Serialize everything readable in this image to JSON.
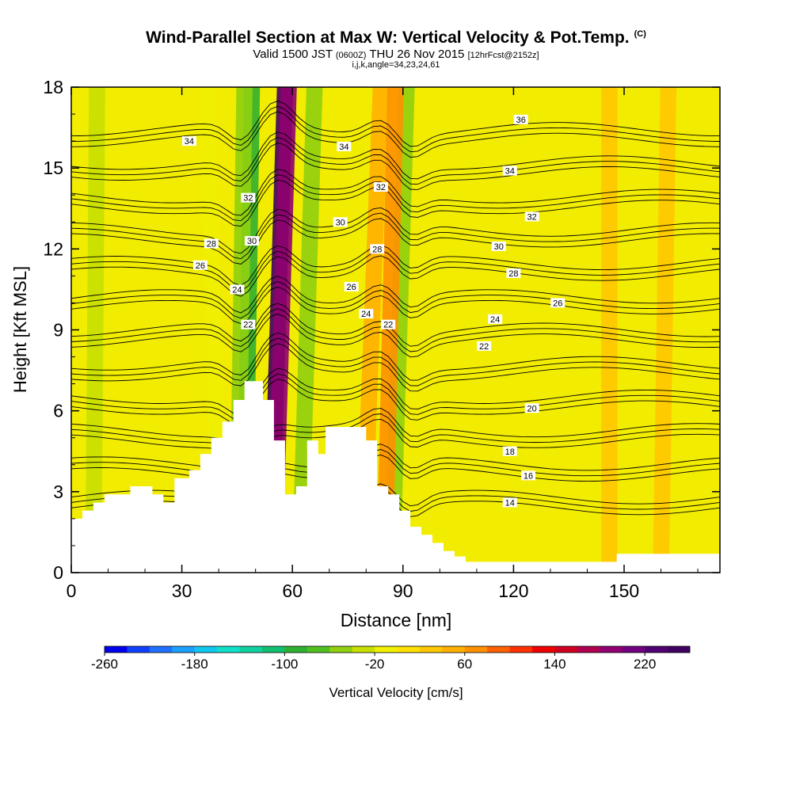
{
  "header": {
    "title": "Wind-Parallel Section at Max W: Vertical Velocity & Pot.Temp.",
    "copyright": "(C)",
    "valid_prefix": "Valid 1500 JST",
    "valid_utc": "(0600Z)",
    "valid_day": "THU 26 Nov 2015",
    "forecast": "[12hrFcst@2152z]",
    "indices": "i,j,k,angle=34,23,24,61"
  },
  "chart_data": {
    "type": "heatmap",
    "title": "Wind-Parallel Section at Max W: Vertical Velocity & Pot.Temp.",
    "xlabel": "Distance [nm]",
    "ylabel": "Height [Kft MSL]",
    "xlim": [
      0,
      176
    ],
    "ylim": [
      0,
      18
    ],
    "x_ticks": [
      "0",
      "30",
      "60",
      "90",
      "120",
      "150"
    ],
    "y_ticks": [
      "0",
      "3",
      "6",
      "9",
      "12",
      "15",
      "18"
    ],
    "colorbar": {
      "label": "Vertical Velocity [cm/s]",
      "min": -260,
      "max": 260,
      "step": 20,
      "tick_labels": [
        "-260",
        "-180",
        "-100",
        "-20",
        "60",
        "140",
        "220"
      ],
      "colors": [
        "#0000ee",
        "#1040ff",
        "#2070ff",
        "#1aa0ff",
        "#10c8ee",
        "#10e0c8",
        "#10d0a0",
        "#10c070",
        "#30b030",
        "#50c020",
        "#90d010",
        "#c8e000",
        "#f0f000",
        "#ffe000",
        "#ffc800",
        "#ffb000",
        "#ff9000",
        "#ff6000",
        "#ff3000",
        "#f00000",
        "#d00020",
        "#b00050",
        "#900070",
        "#700080",
        "#500070",
        "#400060"
      ]
    },
    "velocity_plumes": [
      {
        "x_top": 58,
        "x_bottom": 54,
        "value": 260
      },
      {
        "x_top": 59,
        "x_bottom": 55,
        "value": 180
      },
      {
        "x_top": 49,
        "x_bottom": 47,
        "value": -100
      },
      {
        "x_top": 47,
        "x_bottom": 45,
        "value": -60
      },
      {
        "x_top": 66,
        "x_bottom": 62,
        "value": -60
      },
      {
        "x_top": 84,
        "x_bottom": 79,
        "value": 40
      },
      {
        "x_top": 91,
        "x_bottom": 87,
        "value": -60
      },
      {
        "x_top": 88,
        "x_bottom": 85,
        "value": 60
      },
      {
        "x_top": 7,
        "x_bottom": 6,
        "value": -40
      },
      {
        "x_top": 37,
        "x_bottom": 40,
        "value": -20
      },
      {
        "x_top": 146,
        "x_bottom": 146,
        "value": 20
      },
      {
        "x_top": 162,
        "x_bottom": 160,
        "value": 20
      }
    ],
    "terrain": [
      [
        0,
        2
      ],
      [
        3,
        2
      ],
      [
        3,
        2.3
      ],
      [
        6,
        2.3
      ],
      [
        6,
        2.6
      ],
      [
        9,
        2.6
      ],
      [
        9,
        2.9
      ],
      [
        16,
        2.9
      ],
      [
        16,
        3.2
      ],
      [
        22,
        3.2
      ],
      [
        22,
        2.9
      ],
      [
        25,
        2.9
      ],
      [
        25,
        2.6
      ],
      [
        28,
        2.6
      ],
      [
        28,
        3.5
      ],
      [
        32,
        3.5
      ],
      [
        32,
        3.8
      ],
      [
        35,
        3.8
      ],
      [
        35,
        4.4
      ],
      [
        38,
        4.4
      ],
      [
        38,
        5
      ],
      [
        41,
        5
      ],
      [
        41,
        5.6
      ],
      [
        44,
        5.6
      ],
      [
        44,
        6.4
      ],
      [
        47,
        6.4
      ],
      [
        47,
        7.1
      ],
      [
        52,
        7.1
      ],
      [
        52,
        6.4
      ],
      [
        55,
        6.4
      ],
      [
        55,
        4.9
      ],
      [
        58,
        4.9
      ],
      [
        58,
        2.9
      ],
      [
        61,
        2.9
      ],
      [
        61,
        3.2
      ],
      [
        64,
        3.2
      ],
      [
        64,
        4.9
      ],
      [
        67,
        4.9
      ],
      [
        67,
        4.4
      ],
      [
        69,
        4.4
      ],
      [
        69,
        5.4
      ],
      [
        80,
        5.4
      ],
      [
        80,
        4.9
      ],
      [
        83,
        4.9
      ],
      [
        83,
        3.2
      ],
      [
        86,
        3.2
      ],
      [
        86,
        2.9
      ],
      [
        89,
        2.9
      ],
      [
        89,
        2.3
      ],
      [
        92,
        2.3
      ],
      [
        92,
        1.7
      ],
      [
        95,
        1.7
      ],
      [
        95,
        1.4
      ],
      [
        98,
        1.4
      ],
      [
        98,
        1.1
      ],
      [
        101,
        1.1
      ],
      [
        101,
        0.8
      ],
      [
        104,
        0.8
      ],
      [
        104,
        0.6
      ],
      [
        107,
        0.6
      ],
      [
        107,
        0.4
      ],
      [
        148,
        0.4
      ],
      [
        148,
        0.7
      ],
      [
        176,
        0.7
      ],
      [
        176,
        0
      ],
      [
        0,
        0
      ]
    ],
    "isentropes": {
      "levels": [
        14,
        16,
        18,
        20,
        22,
        24,
        26,
        28,
        30,
        32,
        34,
        36
      ],
      "contour_labels": [
        {
          "text": "34",
          "x": 32,
          "y": 16.0
        },
        {
          "text": "34",
          "x": 74,
          "y": 15.8
        },
        {
          "text": "36",
          "x": 122,
          "y": 16.8
        },
        {
          "text": "34",
          "x": 119,
          "y": 14.9
        },
        {
          "text": "32",
          "x": 48,
          "y": 13.9
        },
        {
          "text": "32",
          "x": 84,
          "y": 14.3
        },
        {
          "text": "32",
          "x": 125,
          "y": 13.2
        },
        {
          "text": "30",
          "x": 49,
          "y": 12.3
        },
        {
          "text": "30",
          "x": 73,
          "y": 13.0
        },
        {
          "text": "30",
          "x": 116,
          "y": 12.1
        },
        {
          "text": "28",
          "x": 38,
          "y": 12.2
        },
        {
          "text": "28",
          "x": 83,
          "y": 12.0
        },
        {
          "text": "28",
          "x": 120,
          "y": 11.1
        },
        {
          "text": "26",
          "x": 35,
          "y": 11.4
        },
        {
          "text": "26",
          "x": 76,
          "y": 10.6
        },
        {
          "text": "26",
          "x": 132,
          "y": 10.0
        },
        {
          "text": "24",
          "x": 45,
          "y": 10.5
        },
        {
          "text": "24",
          "x": 80,
          "y": 9.6
        },
        {
          "text": "24",
          "x": 115,
          "y": 9.4
        },
        {
          "text": "22",
          "x": 48,
          "y": 9.2
        },
        {
          "text": "22",
          "x": 86,
          "y": 9.2
        },
        {
          "text": "22",
          "x": 112,
          "y": 8.4
        },
        {
          "text": "20",
          "x": 125,
          "y": 6.1
        },
        {
          "text": "18",
          "x": 119,
          "y": 4.5
        },
        {
          "text": "16",
          "x": 124,
          "y": 3.6
        },
        {
          "text": "14",
          "x": 119,
          "y": 2.6
        }
      ]
    }
  }
}
